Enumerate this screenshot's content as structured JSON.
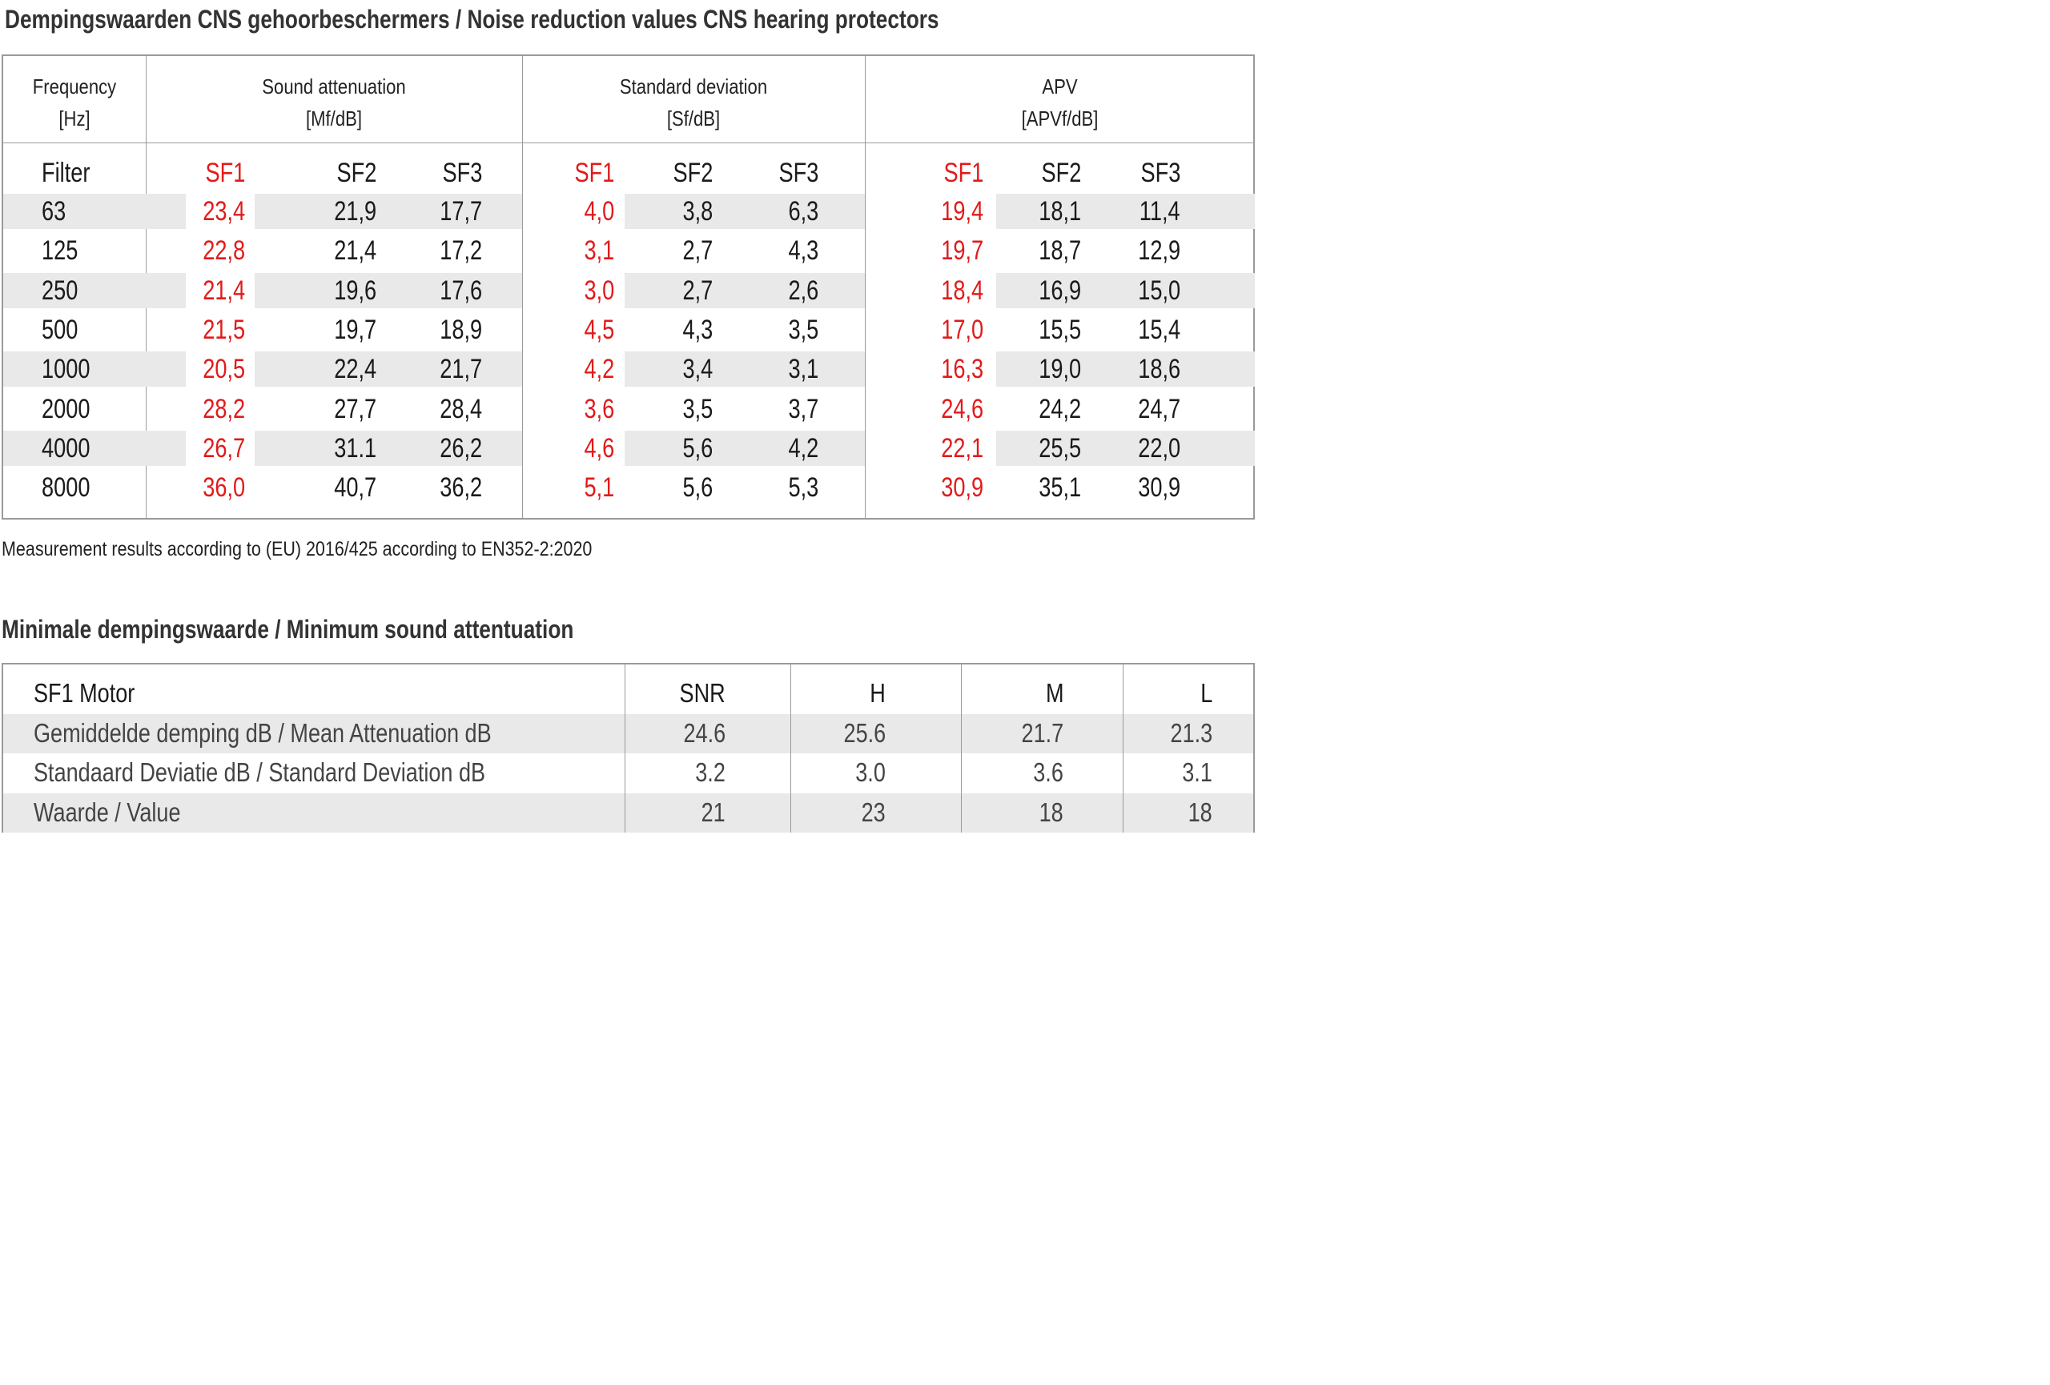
{
  "title": "Dempingswaarden CNS gehoorbeschermers /  Noise reduction values CNS hearing protectors",
  "headers": {
    "frequency": [
      "Frequency",
      "[Hz]"
    ],
    "sound_attenuation": [
      "Sound attenuation",
      "[Mf/dB]"
    ],
    "standard_deviation": [
      "Standard deviation",
      "[Sf/dB]"
    ],
    "apv": [
      "APV",
      "[APVf/dB]"
    ]
  },
  "filter_label": "Filter",
  "sub_labels": [
    "SF1",
    "SF2",
    "SF3"
  ],
  "rows": [
    {
      "freq": "63",
      "att": [
        "23,4",
        "21,9",
        "17,7"
      ],
      "sd": [
        "4,0",
        "3,8",
        "6,3"
      ],
      "apv": [
        "19,4",
        "18,1",
        "11,4"
      ]
    },
    {
      "freq": "125",
      "att": [
        "22,8",
        "21,4",
        "17,2"
      ],
      "sd": [
        "3,1",
        "2,7",
        "4,3"
      ],
      "apv": [
        "19,7",
        "18,7",
        "12,9"
      ]
    },
    {
      "freq": "250",
      "att": [
        "21,4",
        "19,6",
        "17,6"
      ],
      "sd": [
        "3,0",
        "2,7",
        "2,6"
      ],
      "apv": [
        "18,4",
        "16,9",
        "15,0"
      ]
    },
    {
      "freq": "500",
      "att": [
        "21,5",
        "19,7",
        "18,9"
      ],
      "sd": [
        "4,5",
        "4,3",
        "3,5"
      ],
      "apv": [
        "17,0",
        "15,5",
        "15,4"
      ]
    },
    {
      "freq": "1000",
      "att": [
        "20,5",
        "22,4",
        "21,7"
      ],
      "sd": [
        "4,2",
        "3,4",
        "3,1"
      ],
      "apv": [
        "16,3",
        "19,0",
        "18,6"
      ]
    },
    {
      "freq": "2000",
      "att": [
        "28,2",
        "27,7",
        "28,4"
      ],
      "sd": [
        "3,6",
        "3,5",
        "3,7"
      ],
      "apv": [
        "24,6",
        "24,2",
        "24,7"
      ]
    },
    {
      "freq": "4000",
      "att": [
        "26,7",
        "31.1",
        "26,2"
      ],
      "sd": [
        "4,6",
        "5,6",
        "4,2"
      ],
      "apv": [
        "22,1",
        "25,5",
        "22,0"
      ]
    },
    {
      "freq": "8000",
      "att": [
        "36,0",
        "40,7",
        "36,2"
      ],
      "sd": [
        "5,1",
        "5,6",
        "5,3"
      ],
      "apv": [
        "30,9",
        "35,1",
        "30,9"
      ]
    }
  ],
  "note": "Measurement results according to (EU) 2016/425 according to EN352-2:2020",
  "min_title": "Minimale dempingswaarde / Minimum sound attentuation",
  "min_table": {
    "header": [
      "SF1 Motor",
      "SNR",
      "H",
      "M",
      "L"
    ],
    "rows": [
      [
        "Gemiddelde demping dB / Mean Attenuation dB",
        "24.6",
        "25.6",
        "21.7",
        "21.3"
      ],
      [
        "Standaard Deviatie dB / Standard Deviation dB",
        "3.2",
        "3.0",
        "3.6",
        "3.1"
      ],
      [
        "Waarde / Value",
        "21",
        "23",
        "18",
        "18"
      ]
    ]
  },
  "colors": {
    "accent_red": "#e21a1a",
    "stripe": "#e9e9e9",
    "border": "#9a9a9a"
  }
}
